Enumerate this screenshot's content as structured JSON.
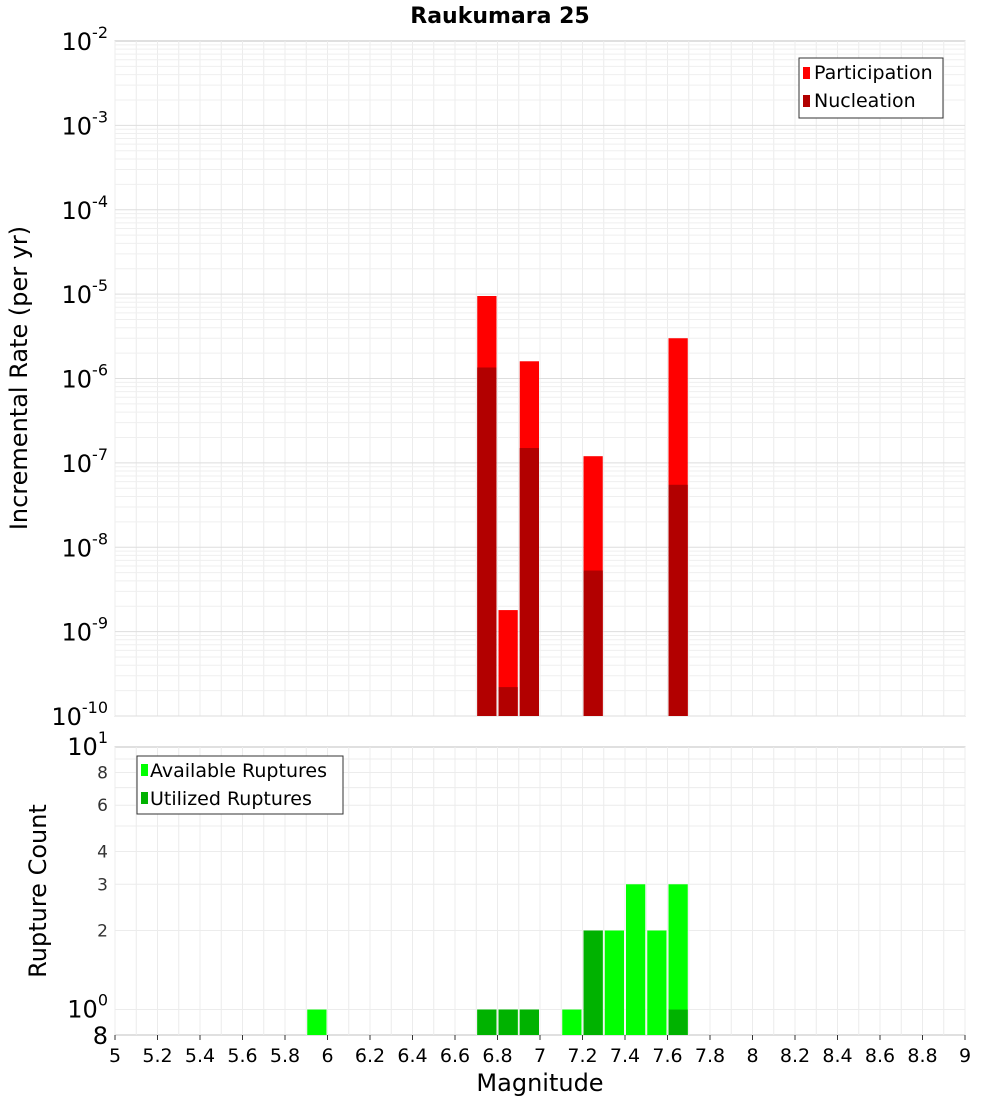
{
  "chart_data": [
    {
      "type": "bar",
      "title": "Raukumara 25",
      "xlabel": "",
      "ylabel": "Incremental Rate (per yr)",
      "yscale": "log",
      "ylim": [
        1e-10,
        0.01
      ],
      "xlim": [
        5,
        9
      ],
      "bar_width": 0.1,
      "grid": true,
      "legend_position": "top-right",
      "ytick_exponents": [
        "-10",
        "-9",
        "-8",
        "-7",
        "-6",
        "-5",
        "-4",
        "-3",
        "-2"
      ],
      "series": [
        {
          "name": "Participation",
          "color": "#ff0000",
          "x": [
            6.75,
            6.85,
            6.95,
            7.25,
            7.65
          ],
          "values": [
            9.5e-06,
            1.8e-09,
            1.6e-06,
            1.2e-07,
            3e-06
          ]
        },
        {
          "name": "Nucleation",
          "color": "#b20000",
          "x": [
            6.75,
            6.85,
            6.95,
            7.25,
            7.65
          ],
          "values": [
            1.35e-06,
            2.2e-10,
            1.5e-07,
            5.3e-09,
            5.5e-08
          ]
        }
      ]
    },
    {
      "type": "bar",
      "title": "",
      "xlabel": "Magnitude",
      "ylabel": "Rupture Count",
      "yscale": "log",
      "ylim": [
        0.8,
        10
      ],
      "xlim": [
        5,
        9
      ],
      "bar_width": 0.1,
      "grid": true,
      "legend_position": "top-left",
      "xticks": [
        "5",
        "5.2",
        "5.4",
        "5.6",
        "5.8",
        "6",
        "6.2",
        "6.4",
        "6.6",
        "6.8",
        "7",
        "7.2",
        "7.4",
        "7.6",
        "7.8",
        "8",
        "8.2",
        "8.4",
        "8.6",
        "8.8",
        "9"
      ],
      "ytick_minor_labels": [
        "8",
        "6",
        "4",
        "3",
        "2"
      ],
      "ytick_bottom_label": "8",
      "ytick_major_base": "10",
      "ytick_major_exponents": [
        "0",
        "1"
      ],
      "series": [
        {
          "name": "Available Ruptures",
          "color": "#00ff00",
          "x": [
            5.95,
            6.75,
            6.85,
            6.95,
            7.15,
            7.25,
            7.35,
            7.45,
            7.55,
            7.65
          ],
          "values": [
            1,
            1,
            1,
            1,
            1,
            2,
            2,
            3,
            2,
            3
          ]
        },
        {
          "name": "Utilized Ruptures",
          "color": "#00b200",
          "x": [
            6.75,
            6.85,
            6.95,
            7.25,
            7.65
          ],
          "values": [
            1,
            1,
            1,
            2,
            1
          ]
        }
      ]
    }
  ]
}
